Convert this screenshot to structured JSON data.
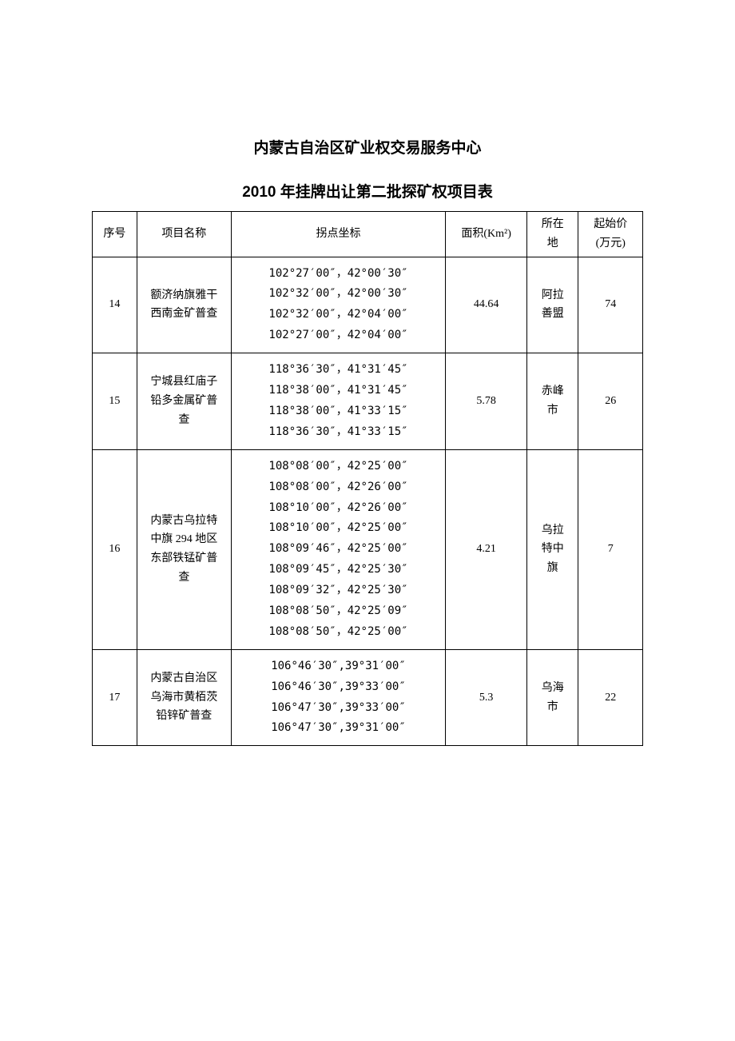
{
  "title": "内蒙古自治区矿业权交易服务中心",
  "subtitle": "2010 年挂牌出让第二批探矿权项目表",
  "columns": {
    "seq": "序号",
    "name": "项目名称",
    "coords": "拐点坐标",
    "area": "面积(Km²)",
    "location": "所在\n地",
    "price": "起始价\n(万元)"
  },
  "rows": [
    {
      "seq": "14",
      "name": "额济纳旗雅干\n西南金矿普查",
      "coords": "102°27′00″，42°00′30″\n102°32′00″，42°00′30″\n102°32′00″，42°04′00″\n102°27′00″，42°04′00″",
      "area": "44.64",
      "location": "阿拉\n善盟",
      "price": "74"
    },
    {
      "seq": "15",
      "name": "宁城县红庙子\n铅多金属矿普\n查",
      "coords": "118°36′30″，41°31′45″\n118°38′00″，41°31′45″\n118°38′00″，41°33′15″\n118°36′30″，41°33′15″",
      "area": "5.78",
      "location": "赤峰\n市",
      "price": "26"
    },
    {
      "seq": "16",
      "name": "内蒙古乌拉特\n中旗 294 地区\n东部铁锰矿普\n查",
      "coords": "108°08′00″，42°25′00″\n108°08′00″，42°26′00″\n108°10′00″，42°26′00″\n108°10′00″，42°25′00″\n108°09′46″，42°25′00″\n108°09′45″，42°25′30″\n108°09′32″，42°25′30″\n108°08′50″，42°25′09″\n108°08′50″，42°25′00″",
      "area": "4.21",
      "location": "乌拉\n特中\n旗",
      "price": "7"
    },
    {
      "seq": "17",
      "name": "内蒙古自治区\n乌海市黄栢茨\n铅锌矿普查",
      "coords": "106°46′30″,39°31′00″\n106°46′30″,39°33′00″\n106°47′30″,39°33′00″\n106°47′30″,39°31′00″",
      "area": "5.3",
      "location": "乌海\n市",
      "price": "22"
    }
  ]
}
